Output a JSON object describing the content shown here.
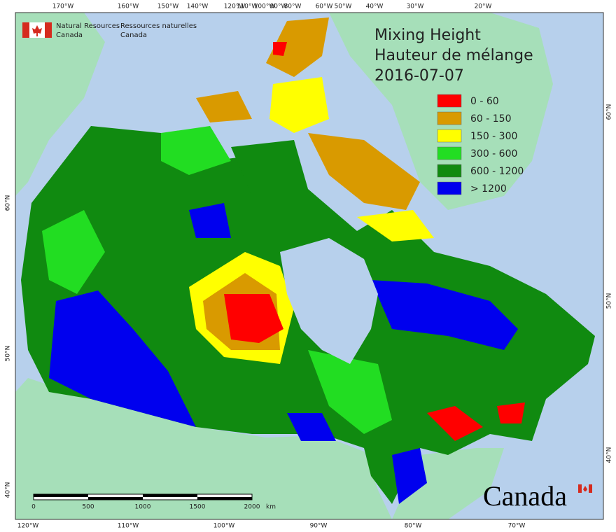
{
  "header": {
    "org_en": [
      "Natural Resources",
      "Canada"
    ],
    "org_fr": [
      "Ressources naturelles",
      "Canada"
    ]
  },
  "title": [
    "Mixing Height",
    "Hauteur de mélange",
    "2016-07-07"
  ],
  "legend": [
    {
      "label": "0 - 60",
      "color": "#ff0000"
    },
    {
      "label": "60 - 150",
      "color": "#d99a00"
    },
    {
      "label": "150 - 300",
      "color": "#ffff00"
    },
    {
      "label": "300 - 600",
      "color": "#22dd22"
    },
    {
      "label": "600 - 1200",
      "color": "#108a10"
    },
    {
      "label": "> 1200",
      "color": "#0000ee"
    }
  ],
  "top_longitudes": [
    "170°W",
    "160°W",
    "150°W",
    "140°W",
    "120°W",
    "110°W",
    "100°W",
    "90°W",
    "80°W",
    "60°W",
    "50°W",
    "40°W",
    "30°W",
    "20°W"
  ],
  "bottom_longitudes": [
    "120°W",
    "110°W",
    "100°W",
    "90°W",
    "80°W",
    "70°W"
  ],
  "left_latitudes": [
    "60°N",
    "50°N",
    "40°N"
  ],
  "right_latitudes": [
    "60°N",
    "50°N",
    "40°N"
  ],
  "scale_bar": {
    "labels": [
      "0",
      "500",
      "1000",
      "1500",
      "2000"
    ],
    "unit": "km"
  },
  "wordmark": "Canada"
}
